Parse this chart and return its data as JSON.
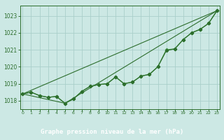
{
  "title": "Graphe pression niveau de la mer (hPa)",
  "bg_color": "#cce8e4",
  "plot_bg": "#cce8e4",
  "footer_bg": "#2d6e2d",
  "grid_color": "#aacfca",
  "line_dark": "#2d6e2d",
  "line_light": "#4a9e4a",
  "ylim": [
    1017.5,
    1023.6
  ],
  "xlim": [
    -0.3,
    23.3
  ],
  "yticks": [
    1018,
    1019,
    1020,
    1021,
    1022,
    1023
  ],
  "xticks": [
    0,
    1,
    2,
    3,
    4,
    5,
    6,
    7,
    8,
    9,
    10,
    11,
    12,
    13,
    14,
    15,
    16,
    17,
    18,
    19,
    20,
    21,
    22,
    23
  ],
  "series_main": [
    1018.4,
    1018.5,
    1018.3,
    1018.2,
    1018.25,
    1017.85,
    1018.1,
    1018.55,
    1018.85,
    1018.95,
    1019.0,
    1019.4,
    1019.0,
    1019.1,
    1019.45,
    1019.55,
    1020.0,
    1020.95,
    1021.05,
    1021.6,
    1022.0,
    1022.2,
    1022.55,
    1023.3
  ],
  "series_alt": [
    1018.4,
    1018.5,
    1018.3,
    1018.2,
    1018.25,
    1017.85,
    1018.1,
    1018.55,
    1018.85,
    1018.95,
    1019.0,
    1019.4,
    1019.0,
    1019.1,
    1019.45,
    1019.55,
    1020.0,
    1021.0,
    1021.05,
    1021.6,
    1022.0,
    1022.2,
    1022.55,
    1023.3
  ],
  "ref_line1_x": [
    0,
    23
  ],
  "ref_line1_y": [
    1018.4,
    1023.3
  ],
  "ref_line2_x": [
    0,
    5,
    23
  ],
  "ref_line2_y": [
    1018.4,
    1017.85,
    1023.3
  ]
}
